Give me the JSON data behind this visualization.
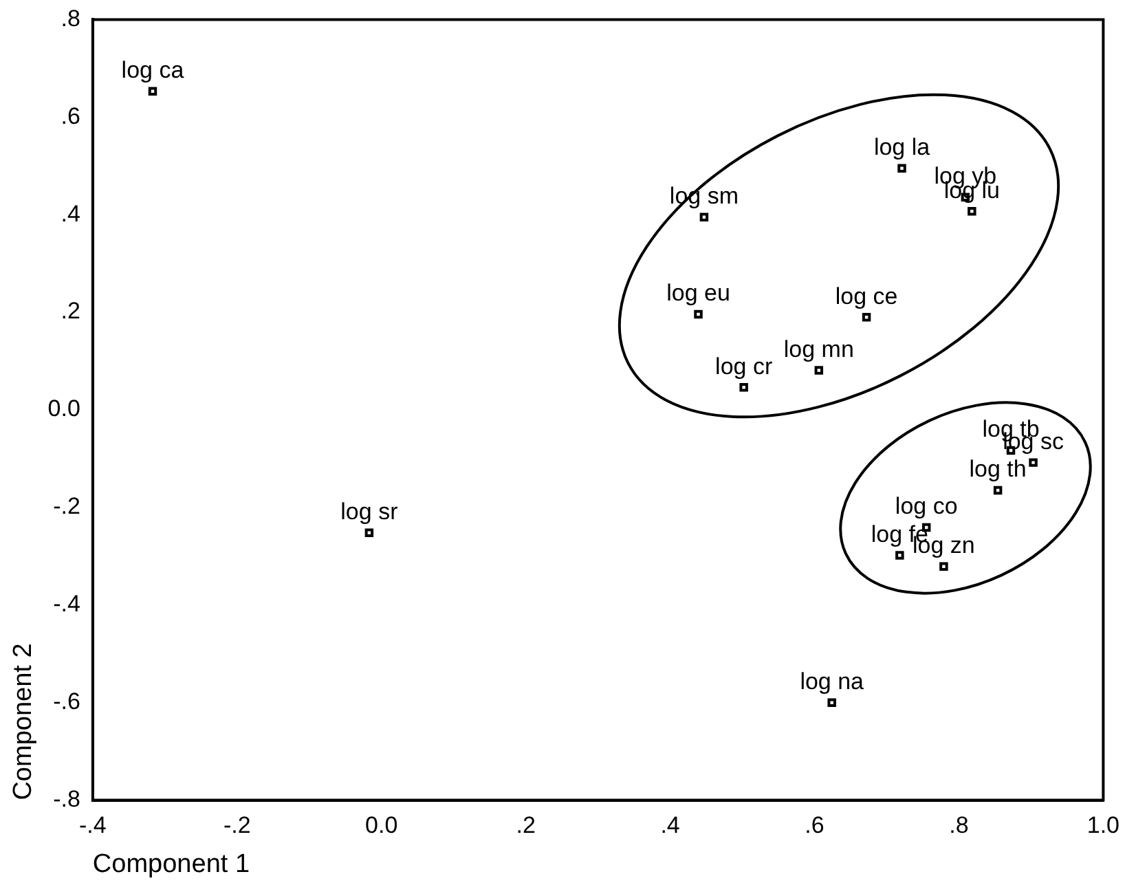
{
  "chart_data": {
    "type": "scatter",
    "xlabel": "Component 1",
    "ylabel": "Component 2",
    "color": "#000000",
    "marker": "square",
    "grid": false,
    "legend": false,
    "x": [
      -0.317,
      -0.017,
      0.624,
      0.721,
      0.809,
      0.818,
      0.447,
      0.439,
      0.672,
      0.606,
      0.502,
      0.872,
      0.903,
      0.854,
      0.755,
      0.718,
      0.779
    ],
    "values": [
      0.653,
      -0.252,
      -0.6,
      0.495,
      0.436,
      0.407,
      0.395,
      0.196,
      0.19,
      0.081,
      0.046,
      -0.083,
      -0.108,
      -0.165,
      -0.241,
      -0.298,
      -0.321
    ],
    "xlim": [
      -0.4,
      1.0
    ],
    "ylim": [
      -0.8,
      0.8
    ],
    "xticks": [
      {
        "value": -0.4,
        "label": "-.4"
      },
      {
        "value": -0.2,
        "label": "-.2"
      },
      {
        "value": 0,
        "label": "0.0"
      },
      {
        "value": 0.2,
        "label": ".2"
      },
      {
        "value": 0.4,
        "label": ".4"
      },
      {
        "value": 0.6,
        "label": ".6"
      },
      {
        "value": 0.8,
        "label": ".8"
      },
      {
        "value": 1.0,
        "label": "1.0"
      }
    ],
    "yticks": [
      {
        "value": -0.8,
        "label": "-.8"
      },
      {
        "value": -0.6,
        "label": "-.6"
      },
      {
        "value": -0.4,
        "label": "-.4"
      },
      {
        "value": -0.2,
        "label": "-.2"
      },
      {
        "value": 0,
        "label": "0.0"
      },
      {
        "value": 0.2,
        "label": ".2"
      },
      {
        "value": 0.4,
        "label": ".4"
      },
      {
        "value": 0.6,
        "label": ".6"
      },
      {
        "value": 0.8,
        "label": ".8"
      }
    ],
    "annotations": [
      {
        "text": "log ca",
        "x": -0.317,
        "y": 0.653
      },
      {
        "text": "log sr",
        "x": -0.017,
        "y": -0.252
      },
      {
        "text": "log na",
        "x": 0.624,
        "y": -0.6
      },
      {
        "text": "log la",
        "x": 0.721,
        "y": 0.495
      },
      {
        "text": "log yb",
        "x": 0.809,
        "y": 0.436
      },
      {
        "text": "log lu",
        "x": 0.818,
        "y": 0.407
      },
      {
        "text": "log sm",
        "x": 0.447,
        "y": 0.395
      },
      {
        "text": "log eu",
        "x": 0.439,
        "y": 0.196
      },
      {
        "text": "log ce",
        "x": 0.672,
        "y": 0.19
      },
      {
        "text": "log mn",
        "x": 0.606,
        "y": 0.081
      },
      {
        "text": "log cr",
        "x": 0.502,
        "y": 0.046
      },
      {
        "text": "log tb",
        "x": 0.872,
        "y": -0.083
      },
      {
        "text": "log sc",
        "x": 0.903,
        "y": -0.108
      },
      {
        "text": "log th",
        "x": 0.854,
        "y": -0.165
      },
      {
        "text": "log co",
        "x": 0.755,
        "y": -0.241
      },
      {
        "text": "log fe",
        "x": 0.718,
        "y": -0.298
      },
      {
        "text": "log zn",
        "x": 0.779,
        "y": -0.321
      }
    ]
  }
}
